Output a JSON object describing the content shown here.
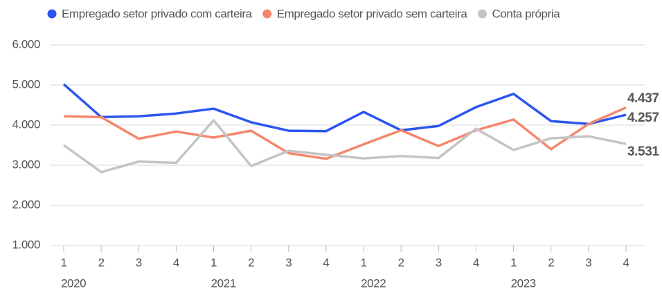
{
  "chart_data": {
    "type": "line",
    "categories": [
      "1",
      "2",
      "3",
      "4",
      "1",
      "2",
      "3",
      "4",
      "1",
      "2",
      "3",
      "4",
      "1",
      "2",
      "3",
      "4"
    ],
    "x_groups": [
      "2020",
      "2021",
      "2022",
      "2023"
    ],
    "ylim": [
      1000,
      6000
    ],
    "yticks": [
      {
        "value": 1000,
        "label": "1.000"
      },
      {
        "value": 2000,
        "label": "2.000"
      },
      {
        "value": 3000,
        "label": "3.000"
      },
      {
        "value": 4000,
        "label": "4.000"
      },
      {
        "value": 5000,
        "label": "5.000"
      },
      {
        "value": 6000,
        "label": "6.000"
      }
    ],
    "grid": true,
    "legend": "top",
    "series": [
      {
        "name": "Empregado setor privado com carteira",
        "color": "#2b56f0",
        "values": [
          5020,
          4200,
          4220,
          4290,
          4410,
          4070,
          3860,
          3850,
          4330,
          3870,
          3980,
          4450,
          4780,
          4100,
          4030,
          4257
        ],
        "value_labels": [
          null,
          null,
          null,
          null,
          null,
          null,
          null,
          null,
          null,
          null,
          null,
          null,
          null,
          null,
          null,
          "4.257"
        ]
      },
      {
        "name": "Empregado setor privado sem carteira",
        "color": "#f4876b",
        "values": [
          4220,
          4200,
          3660,
          3840,
          3690,
          3860,
          3300,
          3160,
          3520,
          3870,
          3480,
          3870,
          4140,
          3400,
          4030,
          4437
        ],
        "value_labels": [
          null,
          null,
          null,
          null,
          null,
          null,
          null,
          null,
          null,
          null,
          null,
          null,
          null,
          null,
          null,
          "4.437"
        ]
      },
      {
        "name": "Conta própria",
        "color": "#c4c4c4",
        "values": [
          3500,
          2830,
          3090,
          3060,
          4120,
          2980,
          3360,
          3260,
          3170,
          3230,
          3180,
          3910,
          3380,
          3670,
          3720,
          3531
        ],
        "value_labels": [
          null,
          null,
          null,
          null,
          null,
          null,
          null,
          null,
          null,
          null,
          null,
          null,
          null,
          null,
          null,
          "3.531"
        ]
      }
    ]
  }
}
